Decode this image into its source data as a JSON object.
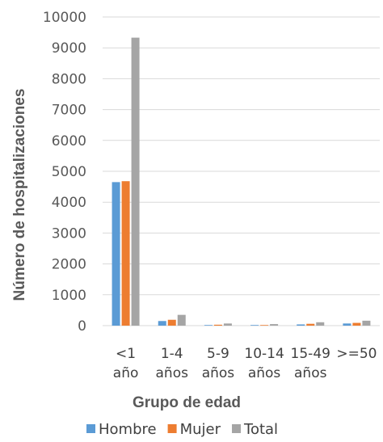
{
  "chart_data": {
    "type": "bar",
    "xlabel": "Grupo de edad",
    "ylabel": "Número de hospitalizaciones",
    "ylim": [
      0,
      10000
    ],
    "yticks": [
      0,
      1000,
      2000,
      3000,
      4000,
      5000,
      6000,
      7000,
      8000,
      9000,
      10000
    ],
    "grid": true,
    "legend_position": "bottom",
    "categories": [
      [
        "<1",
        "año"
      ],
      [
        "1-4",
        "años"
      ],
      [
        "5-9",
        "años"
      ],
      [
        "10-14",
        "años"
      ],
      [
        "15-49",
        "años"
      ],
      [
        ">=50"
      ]
    ],
    "series": [
      {
        "name": "Hombre",
        "color": "#5B9BD5",
        "values": [
          4650,
          150,
          20,
          20,
          40,
          70
        ]
      },
      {
        "name": "Mujer",
        "color": "#ED7D31",
        "values": [
          4680,
          190,
          30,
          20,
          60,
          90
        ]
      },
      {
        "name": "Total",
        "color": "#A5A5A5",
        "values": [
          9330,
          350,
          70,
          50,
          110,
          160
        ]
      }
    ]
  }
}
